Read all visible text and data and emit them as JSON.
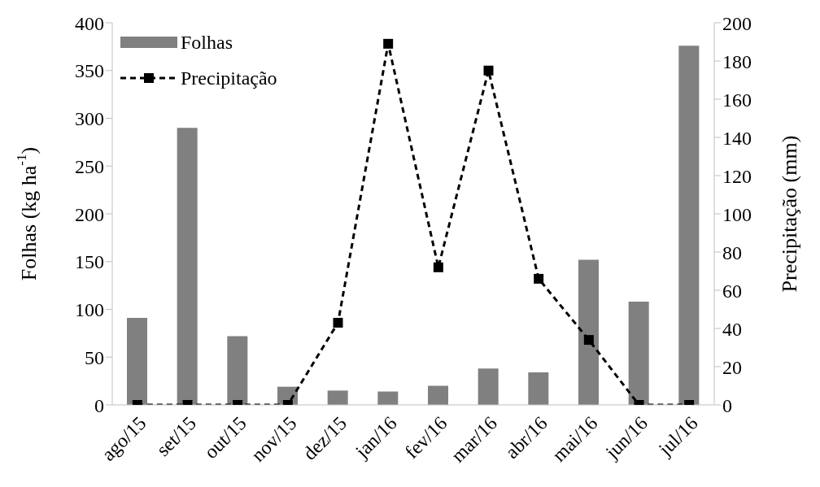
{
  "chart_data": {
    "type": "bar",
    "categories": [
      "ago/15",
      "set/15",
      "out/15",
      "nov/15",
      "dez/15",
      "jan/16",
      "fev/16",
      "mar/16",
      "abr/16",
      "mai/16",
      "jun/16",
      "jul/16"
    ],
    "series": [
      {
        "name": "Folhas",
        "color": "#808080",
        "values": [
          91,
          290,
          72,
          19,
          15,
          14,
          20,
          38,
          34,
          152,
          108,
          376
        ]
      },
      {
        "name": "Precipitação",
        "type": "line",
        "axis": "y2",
        "color": "#000000",
        "marker": "square",
        "line_style": "dashed",
        "values": [
          0,
          0,
          0,
          0,
          43,
          189,
          72,
          175,
          66,
          34,
          0,
          0
        ]
      }
    ],
    "ylabel": "Folhas (kg ha$^{-1}$)",
    "y2label": "Precipitação (mm)",
    "ylim": [
      0,
      400
    ],
    "yticks": [
      0,
      50,
      100,
      150,
      200,
      250,
      300,
      350,
      400
    ],
    "y2lim": [
      0,
      200
    ],
    "y2ticks": [
      0,
      20,
      40,
      60,
      80,
      100,
      120,
      140,
      160,
      180,
      200
    ],
    "legend": "top left"
  }
}
